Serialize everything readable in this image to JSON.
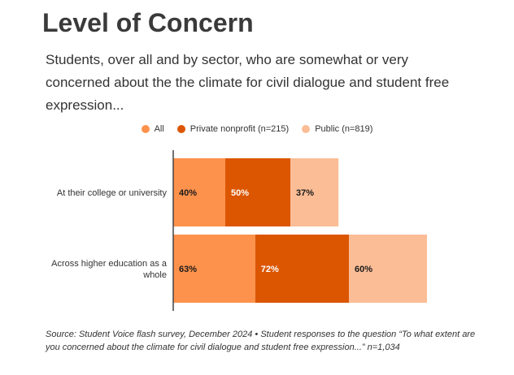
{
  "chart_data": {
    "type": "bar",
    "title": "Level of Concern",
    "subtitle": "Students, over all and by sector, who are somewhat or very concerned about the the climate for civil dialogue and student free expression...",
    "categories": [
      "At their college or university",
      "Across higher education as a whole"
    ],
    "series": [
      {
        "name": "All",
        "values": [
          40,
          63
        ],
        "labels": [
          "40%",
          "63%"
        ],
        "color": "#fd924c"
      },
      {
        "name": "Private nonprofit (n=215)",
        "values": [
          50,
          72
        ],
        "labels": [
          "50%",
          "72%"
        ],
        "color": "#dc5602"
      },
      {
        "name": "Public (n=819)",
        "values": [
          37,
          60
        ],
        "labels": [
          "37%",
          "60%"
        ],
        "color": "#fbbd96"
      }
    ],
    "stacked": true,
    "legend_position": "top",
    "label_colors": [
      "#1a1a1a",
      "#ffffff",
      "#1a1a1a"
    ],
    "source": "Source: Student Voice flash survey, December 2024 • Student responses to the question “To what extent are you concerned about the climate for civil dialogue and student free expression...” n=1,034"
  }
}
